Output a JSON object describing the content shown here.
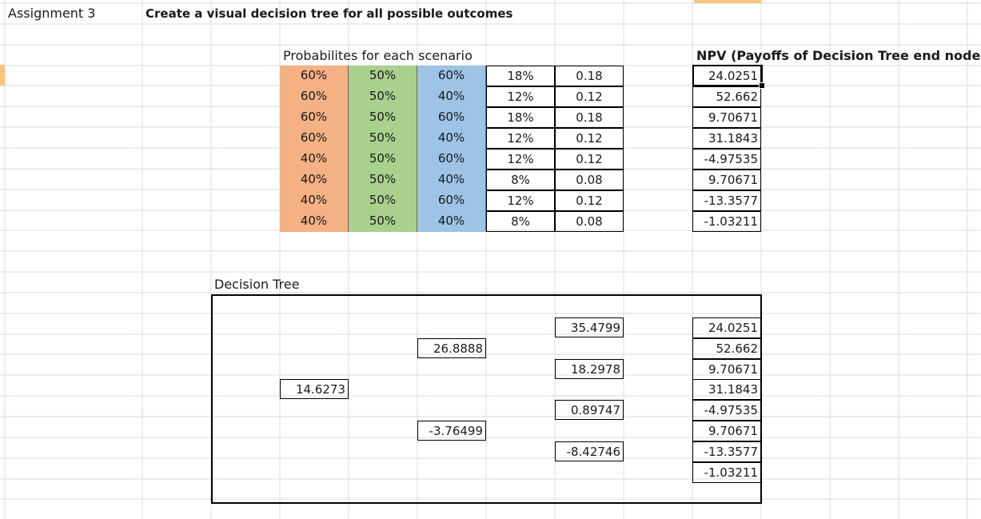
{
  "title_cell": "Assignment 3",
  "heading": "Create a visual decision tree for all possible outcomes",
  "prob_header": "Probabilites for each scenario",
  "npv_header": "NPV (Payoffs of Decision Tree end nodes)",
  "prob_rows": [
    {
      "a": "60%",
      "b": "50%",
      "c": "60%",
      "pct": "18%",
      "dec": "0.18",
      "npv": "24.0251"
    },
    {
      "a": "60%",
      "b": "50%",
      "c": "40%",
      "pct": "12%",
      "dec": "0.12",
      "npv": "52.662"
    },
    {
      "a": "60%",
      "b": "50%",
      "c": "60%",
      "pct": "18%",
      "dec": "0.18",
      "npv": "9.70671"
    },
    {
      "a": "60%",
      "b": "50%",
      "c": "40%",
      "pct": "12%",
      "dec": "0.12",
      "npv": "31.1843"
    },
    {
      "a": "40%",
      "b": "50%",
      "c": "60%",
      "pct": "12%",
      "dec": "0.12",
      "npv": "-4.97535"
    },
    {
      "a": "40%",
      "b": "50%",
      "c": "40%",
      "pct": "8%",
      "dec": "0.08",
      "npv": "9.70671"
    },
    {
      "a": "40%",
      "b": "50%",
      "c": "60%",
      "pct": "12%",
      "dec": "0.12",
      "npv": "-13.3577"
    },
    {
      "a": "40%",
      "b": "50%",
      "c": "40%",
      "pct": "8%",
      "dec": "0.08",
      "npv": "-1.03211"
    }
  ],
  "tree_label": "Decision Tree",
  "tree": {
    "root": "14.6273",
    "level1": [
      "26.8888",
      "-3.76499"
    ],
    "level2": [
      "35.4799",
      "18.2978",
      "0.89747",
      "-8.42746"
    ],
    "leaves": [
      "24.0251",
      "52.662",
      "9.70671",
      "31.1843",
      "-4.97535",
      "9.70671",
      "-13.3577",
      "-1.03211"
    ]
  },
  "colors": {
    "orange": "#f4b183",
    "green": "#a9d18e",
    "blue": "#9dc3e6",
    "grid": "#d4dbe6"
  }
}
